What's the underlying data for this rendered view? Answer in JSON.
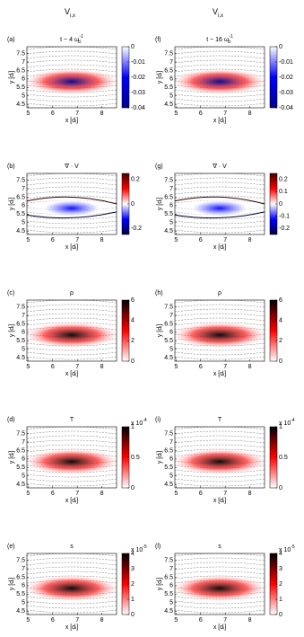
{
  "headers": [
    {
      "name": "V",
      "sub": "i,x"
    },
    {
      "name": "V",
      "sub": "i,x"
    }
  ],
  "chart_data": [
    {
      "type": "heatmap",
      "panel": "(a)",
      "title": "t ~ 4 ω",
      "title_sub": "ci",
      "title_sup": "-1",
      "xlabel": "x [dᵢ]",
      "ylabel": "y [dᵢ]",
      "xlim": [
        4.95,
        8.6
      ],
      "xticks": [
        5,
        6,
        7,
        8
      ],
      "ylim": [
        4.3,
        7.9
      ],
      "yticks": [
        4.5,
        5,
        5.5,
        6,
        6.5,
        7,
        7.5
      ],
      "clim": [
        -0.04,
        0
      ],
      "cticks": [
        0,
        -0.01,
        -0.02,
        -0.03,
        -0.04
      ],
      "colormap": [
        "#00008b",
        "#0000ff",
        "#ffffff"
      ]
    },
    {
      "type": "heatmap",
      "panel": "(b)",
      "title": "∇ · V",
      "xlabel": "x [dᵢ]",
      "ylabel": "y [dᵢ]",
      "xlim": [
        4.95,
        8.6
      ],
      "xticks": [
        5,
        6,
        7,
        8
      ],
      "ylim": [
        4.3,
        7.9
      ],
      "yticks": [
        4.5,
        5,
        5.5,
        6,
        6.5,
        7,
        7.5
      ],
      "clim": [
        -0.25,
        0.25
      ],
      "cticks": [
        0.2,
        0,
        -0.2
      ],
      "colormap": [
        "#000040",
        "#0000ff",
        "#ffffff",
        "#ff0000",
        "#400000"
      ]
    },
    {
      "type": "heatmap",
      "panel": "(c)",
      "title": "ρ",
      "xlabel": "x [dᵢ]",
      "ylabel": "y [dᵢ]",
      "xlim": [
        4.95,
        8.6
      ],
      "xticks": [
        5,
        6,
        7,
        8
      ],
      "ylim": [
        4.3,
        7.9
      ],
      "yticks": [
        4.5,
        5,
        5.5,
        6,
        6.5,
        7,
        7.5
      ],
      "clim": [
        0,
        6
      ],
      "cticks": [
        6,
        4,
        2,
        0
      ],
      "colormap": [
        "#ffffff",
        "#ff0000",
        "#000000"
      ]
    },
    {
      "type": "heatmap",
      "panel": "(d)",
      "title": "T",
      "xlabel": "x [dᵢ]",
      "ylabel": "y [dᵢ]",
      "xlim": [
        4.95,
        8.6
      ],
      "xticks": [
        5,
        6,
        7,
        8
      ],
      "ylim": [
        4.3,
        7.9
      ],
      "yticks": [
        4.5,
        5,
        5.5,
        6,
        6.5,
        7,
        7.5
      ],
      "clim": [
        0,
        1
      ],
      "cticks": [
        1,
        0.5,
        0
      ],
      "scale_label": "x 10",
      "scale_exponent": "-4",
      "colormap": [
        "#ffffff",
        "#ff0000",
        "#000000"
      ]
    },
    {
      "type": "heatmap",
      "panel": "(e)",
      "title": "s",
      "xlabel": "x [dᵢ]",
      "ylabel": "y [dᵢ]",
      "xlim": [
        4.95,
        8.6
      ],
      "xticks": [
        5,
        6,
        7,
        8
      ],
      "ylim": [
        4.3,
        7.9
      ],
      "yticks": [
        4.5,
        5,
        5.5,
        6,
        6.5,
        7,
        7.5
      ],
      "clim": [
        0,
        4
      ],
      "cticks": [
        4,
        3,
        2,
        1,
        0
      ],
      "scale_label": "x 10",
      "scale_exponent": "-5",
      "colormap": [
        "#ffffff",
        "#ff0000",
        "#000000"
      ]
    },
    {
      "type": "heatmap",
      "panel": "(f)",
      "title": "t ~ 16 ω",
      "title_sub": "ci",
      "title_sup": "-1",
      "xlabel": "x [dᵢ]",
      "ylabel": "y [dᵢ]",
      "xlim": [
        4.95,
        8.6
      ],
      "xticks": [
        5,
        6,
        7,
        8
      ],
      "ylim": [
        4.3,
        7.9
      ],
      "yticks": [
        4.5,
        5,
        5.5,
        6,
        6.5,
        7,
        7.5
      ],
      "clim": [
        -0.04,
        0
      ],
      "cticks": [
        0,
        -0.01,
        -0.02,
        -0.03,
        -0.04
      ],
      "colormap": [
        "#00008b",
        "#0000ff",
        "#ffffff"
      ]
    },
    {
      "type": "heatmap",
      "panel": "(g)",
      "title": "∇ · V",
      "xlabel": "x [dᵢ]",
      "ylabel": "y [dᵢ]",
      "xlim": [
        4.95,
        8.6
      ],
      "xticks": [
        5,
        6,
        7,
        8
      ],
      "ylim": [
        4.3,
        7.9
      ],
      "yticks": [
        4.5,
        5,
        5.5,
        6,
        6.5,
        7,
        7.5
      ],
      "clim": [
        -0.25,
        0.25
      ],
      "cticks": [
        0.2,
        0.1,
        0,
        -0.1,
        -0.2
      ],
      "colormap": [
        "#000040",
        "#0000ff",
        "#ffffff",
        "#ff0000",
        "#400000"
      ]
    },
    {
      "type": "heatmap",
      "panel": "(h)",
      "title": "ρ",
      "xlabel": "x [dᵢ]",
      "ylabel": "y [dᵢ]",
      "xlim": [
        4.95,
        8.6
      ],
      "xticks": [
        5,
        6,
        7,
        8
      ],
      "ylim": [
        4.3,
        7.9
      ],
      "yticks": [
        4.5,
        5,
        5.5,
        6,
        6.5,
        7,
        7.5
      ],
      "clim": [
        0,
        6
      ],
      "cticks": [
        6,
        4,
        2,
        0
      ],
      "colormap": [
        "#ffffff",
        "#ff0000",
        "#000000"
      ]
    },
    {
      "type": "heatmap",
      "panel": "(i)",
      "title": "T",
      "xlabel": "x [dᵢ]",
      "ylabel": "y [dᵢ]",
      "xlim": [
        4.95,
        8.6
      ],
      "xticks": [
        5,
        6,
        7,
        8
      ],
      "ylim": [
        4.3,
        7.9
      ],
      "yticks": [
        4.5,
        5,
        5.5,
        6,
        6.5,
        7,
        7.5
      ],
      "clim": [
        0,
        1
      ],
      "cticks": [
        1,
        0.5,
        0
      ],
      "scale_label": "x 10",
      "scale_exponent": "-4",
      "colormap": [
        "#ffffff",
        "#ff0000",
        "#000000"
      ]
    },
    {
      "type": "heatmap",
      "panel": "(l)",
      "title": "s",
      "xlabel": "x [dᵢ]",
      "ylabel": "y [dᵢ]",
      "xlim": [
        4.95,
        8.6
      ],
      "xticks": [
        5,
        6,
        7,
        8
      ],
      "ylim": [
        4.3,
        7.9
      ],
      "yticks": [
        4.5,
        5,
        5.5,
        6,
        6.5,
        7,
        7.5
      ],
      "clim": [
        0,
        4
      ],
      "cticks": [
        4,
        3,
        2,
        1,
        0
      ],
      "scale_label": "x 10",
      "scale_exponent": "-5",
      "colormap": [
        "#ffffff",
        "#ff0000",
        "#000000"
      ]
    }
  ]
}
